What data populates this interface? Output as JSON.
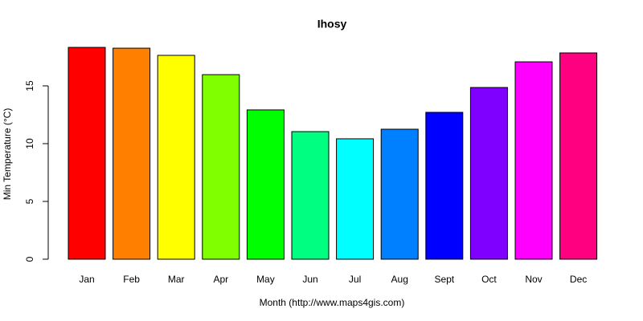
{
  "chart_data": {
    "type": "bar",
    "title": "Ihosy",
    "x_label": "Month (http://www.maps4gis.com)",
    "y_label": "Min Temperature (°C)",
    "categories": [
      "Jan",
      "Feb",
      "Mar",
      "Apr",
      "May",
      "Jun",
      "Jul",
      "Aug",
      "Sept",
      "Oct",
      "Nov",
      "Dec"
    ],
    "values": [
      18.33,
      18.26,
      17.64,
      15.97,
      12.92,
      11.04,
      10.42,
      11.25,
      12.71,
      14.86,
      17.08,
      17.85
    ],
    "colors": [
      "#FF0000",
      "#FF8000",
      "#FFFF00",
      "#80FF00",
      "#00FF00",
      "#00FF80",
      "#00FFFF",
      "#0080FF",
      "#0000FF",
      "#8000FF",
      "#FF00FF",
      "#FF0080"
    ],
    "ylim": [
      0,
      18.5
    ],
    "yticks": [
      0,
      5,
      10,
      15
    ]
  }
}
